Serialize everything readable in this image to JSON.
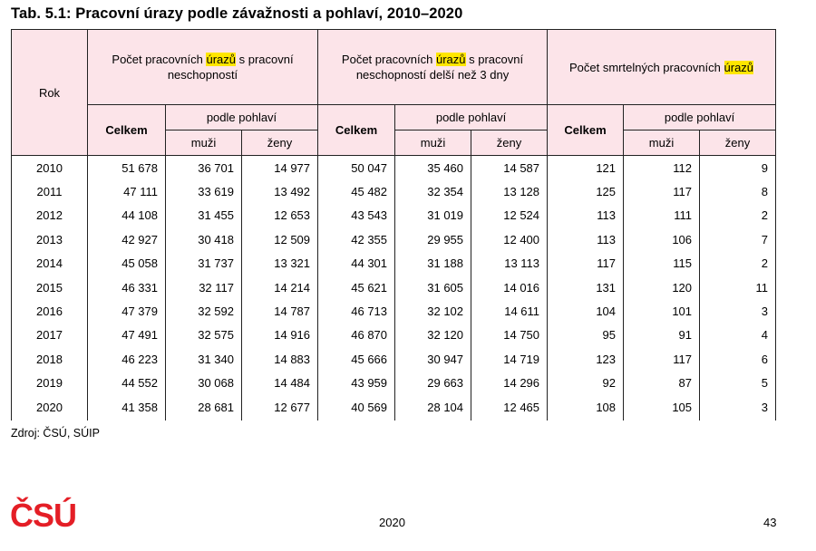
{
  "title": "Tab. 5.1: Pracovní úrazy podle závažnosti a pohlaví, 2010–2020",
  "header": {
    "rok": "Rok",
    "groups": [
      {
        "pre": "Počet pracovních ",
        "hl": "úrazů",
        "post": " s pracovní neschopností"
      },
      {
        "pre": "Počet pracovních ",
        "hl": "úrazů",
        "post": " s pracovní neschopností delší než 3 dny"
      },
      {
        "pre": "Počet smrtelných pracovních ",
        "hl": "úrazů",
        "post": ""
      }
    ],
    "celkem": "Celkem",
    "podle_pohlavi": "podle pohlaví",
    "muzi": "muži",
    "zeny": "ženy"
  },
  "rows": [
    [
      "2010",
      "51 678",
      "36 701",
      "14 977",
      "50 047",
      "35 460",
      "14 587",
      "121",
      "112",
      "9"
    ],
    [
      "2011",
      "47 111",
      "33 619",
      "13 492",
      "45 482",
      "32 354",
      "13 128",
      "125",
      "117",
      "8"
    ],
    [
      "2012",
      "44 108",
      "31 455",
      "12 653",
      "43 543",
      "31 019",
      "12 524",
      "113",
      "111",
      "2"
    ],
    [
      "2013",
      "42 927",
      "30 418",
      "12 509",
      "42 355",
      "29 955",
      "12 400",
      "113",
      "106",
      "7"
    ],
    [
      "2014",
      "45 058",
      "31 737",
      "13 321",
      "44 301",
      "31 188",
      "13 113",
      "117",
      "115",
      "2"
    ],
    [
      "2015",
      "46 331",
      "32 117",
      "14 214",
      "45 621",
      "31 605",
      "14 016",
      "131",
      "120",
      "11"
    ],
    [
      "2016",
      "47 379",
      "32 592",
      "14 787",
      "46 713",
      "32 102",
      "14 611",
      "104",
      "101",
      "3"
    ],
    [
      "2017",
      "47 491",
      "32 575",
      "14 916",
      "46 870",
      "32 120",
      "14 750",
      "95",
      "91",
      "4"
    ],
    [
      "2018",
      "46 223",
      "31 340",
      "14 883",
      "45 666",
      "30 947",
      "14 719",
      "123",
      "117",
      "6"
    ],
    [
      "2019",
      "44 552",
      "30 068",
      "14 484",
      "43 959",
      "29 663",
      "14 296",
      "92",
      "87",
      "5"
    ],
    [
      "2020",
      "41 358",
      "28 681",
      "12 677",
      "40 569",
      "28 104",
      "12 465",
      "108",
      "105",
      "3"
    ]
  ],
  "source": "Zdroj: ČSÚ, SÚIP",
  "footer": {
    "logo": "ČSÚ",
    "year": "2020",
    "page": "43"
  },
  "colors": {
    "header_bg": "#fce4e9",
    "highlight": "#ffe600",
    "logo_red": "#e41e26"
  }
}
